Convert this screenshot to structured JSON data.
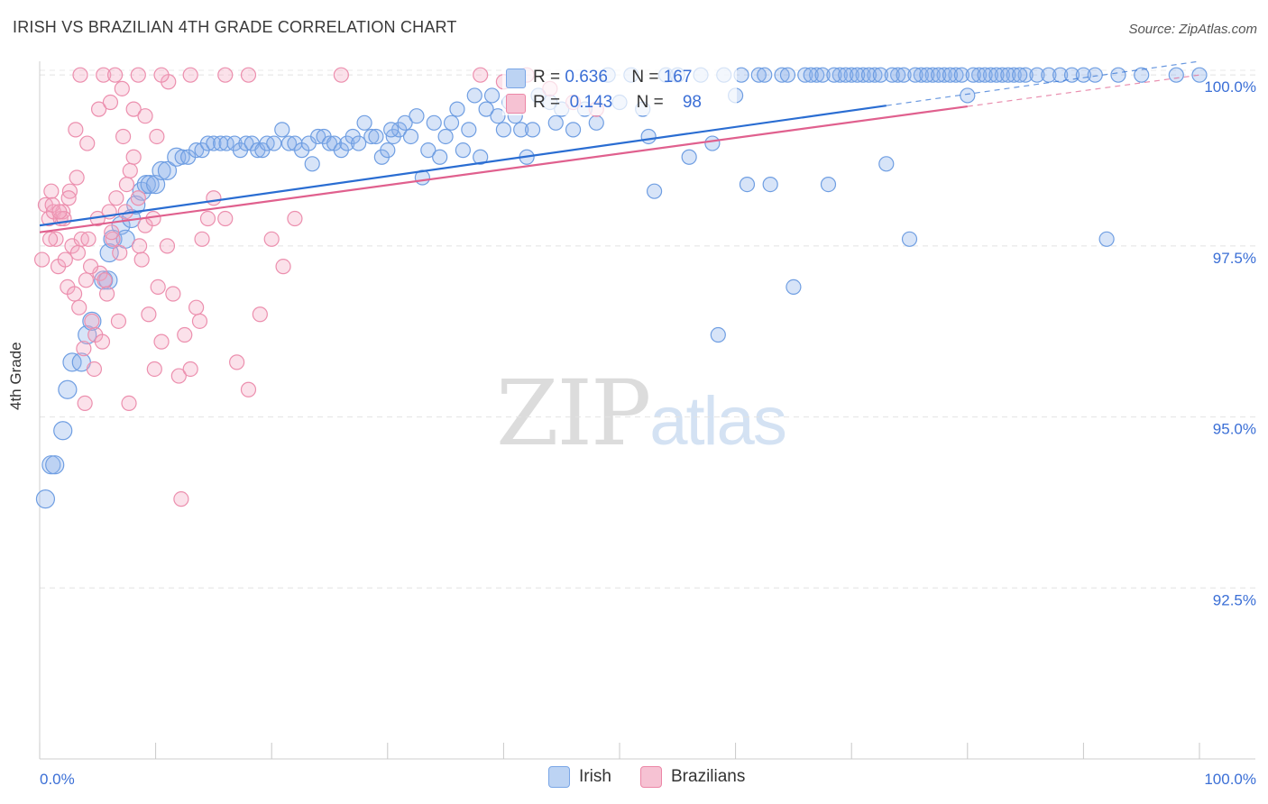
{
  "title": "IRISH VS BRAZILIAN 4TH GRADE CORRELATION CHART",
  "source": "Source: ZipAtlas.com",
  "watermark": {
    "zip": "ZIP",
    "atlas": "atlas"
  },
  "colors": {
    "irish": "#5b8fdc",
    "irish_line": "#2a6dd2",
    "brazilians": "#ec86a6",
    "brazilians_line": "#e0608e",
    "tick_text": "#3b6fd6",
    "grid": "#dddddd"
  },
  "stats": [
    {
      "r_label": "R =",
      "r_value": "0.636",
      "n_label": "N =",
      "n_value": "167"
    },
    {
      "r_label": "R =",
      "r_value": "0.143",
      "n_label": "N =",
      "n_value": "98"
    }
  ],
  "legend": {
    "irish": "Irish",
    "brazilians": "Brazilians"
  },
  "chart_data": {
    "type": "scatter",
    "title": "IRISH VS BRAZILIAN 4TH GRADE CORRELATION CHART",
    "xlabel": "",
    "ylabel": "4th Grade",
    "xlim": [
      0,
      100
    ],
    "ylim": [
      90.0,
      100.2
    ],
    "x_tick_labels": [
      {
        "value": 0,
        "label": "0.0%"
      },
      {
        "value": 100,
        "label": "100.0%"
      }
    ],
    "y_ticks": [
      {
        "value": 100.0,
        "label": "100.0%"
      },
      {
        "value": 97.5,
        "label": "97.5%"
      },
      {
        "value": 95.0,
        "label": "95.0%"
      },
      {
        "value": 92.5,
        "label": "92.5%"
      }
    ],
    "series": [
      {
        "name": "Irish",
        "R": 0.636,
        "N": 167,
        "trend": {
          "x0": 0,
          "y0": 97.8,
          "x1": 100,
          "y1": 100.2,
          "solid_until": 73
        },
        "points": [
          [
            0.5,
            93.8
          ],
          [
            1,
            94.3
          ],
          [
            1.3,
            94.3
          ],
          [
            2,
            94.8
          ],
          [
            2.4,
            95.4
          ],
          [
            2.8,
            95.8
          ],
          [
            3.6,
            95.8
          ],
          [
            4.1,
            96.2
          ],
          [
            4.5,
            96.4
          ],
          [
            5.5,
            97.0
          ],
          [
            5.9,
            97.0
          ],
          [
            6,
            97.4
          ],
          [
            6.3,
            97.6
          ],
          [
            7.0,
            97.8
          ],
          [
            7.4,
            97.6
          ],
          [
            7.9,
            97.9
          ],
          [
            8.3,
            98.1
          ],
          [
            8.8,
            98.3
          ],
          [
            9.2,
            98.4
          ],
          [
            9.5,
            98.4
          ],
          [
            10,
            98.4
          ],
          [
            10.5,
            98.6
          ],
          [
            11,
            98.6
          ],
          [
            11.8,
            98.8
          ],
          [
            12.3,
            98.8
          ],
          [
            12.8,
            98.8
          ],
          [
            13.5,
            98.9
          ],
          [
            14,
            98.9
          ],
          [
            14.5,
            99.0
          ],
          [
            15,
            99.0
          ],
          [
            15.6,
            99.0
          ],
          [
            16.1,
            99.0
          ],
          [
            16.8,
            99.0
          ],
          [
            17.3,
            98.9
          ],
          [
            17.8,
            99.0
          ],
          [
            18.3,
            99.0
          ],
          [
            18.8,
            98.9
          ],
          [
            19.2,
            98.9
          ],
          [
            19.6,
            99.0
          ],
          [
            20.2,
            99.0
          ],
          [
            20.9,
            99.2
          ],
          [
            21.5,
            99.0
          ],
          [
            22,
            99.0
          ],
          [
            22.6,
            98.9
          ],
          [
            23.2,
            99.0
          ],
          [
            23.5,
            98.7
          ],
          [
            24,
            99.1
          ],
          [
            24.5,
            99.1
          ],
          [
            25,
            99.0
          ],
          [
            25.4,
            99.0
          ],
          [
            26,
            98.9
          ],
          [
            26.5,
            99.0
          ],
          [
            27,
            99.1
          ],
          [
            27.5,
            99.0
          ],
          [
            28,
            99.3
          ],
          [
            28.6,
            99.1
          ],
          [
            29,
            99.1
          ],
          [
            29.5,
            98.8
          ],
          [
            30,
            98.9
          ],
          [
            30.5,
            99.1
          ],
          [
            31,
            99.2
          ],
          [
            31.5,
            99.3
          ],
          [
            32,
            99.1
          ],
          [
            32.5,
            99.4
          ],
          [
            33,
            98.5
          ],
          [
            33.5,
            98.9
          ],
          [
            34,
            99.3
          ],
          [
            34.5,
            98.8
          ],
          [
            35,
            99.1
          ],
          [
            35.5,
            99.3
          ],
          [
            36,
            99.5
          ],
          [
            36.5,
            98.9
          ],
          [
            37,
            99.2
          ],
          [
            37.5,
            99.7
          ],
          [
            38,
            98.8
          ],
          [
            38.5,
            99.5
          ],
          [
            39,
            99.7
          ],
          [
            39.5,
            99.4
          ],
          [
            40,
            99.2
          ],
          [
            40.5,
            99.6
          ],
          [
            41,
            99.4
          ],
          [
            41.5,
            99.2
          ],
          [
            42,
            98.8
          ],
          [
            42.5,
            99.2
          ],
          [
            43,
            99.7
          ],
          [
            44,
            99.6
          ],
          [
            45,
            99.5
          ],
          [
            46,
            99.2
          ],
          [
            47,
            99.5
          ],
          [
            48,
            99.3
          ],
          [
            49,
            100
          ],
          [
            50,
            99.6
          ],
          [
            51,
            100
          ],
          [
            52,
            99.5
          ],
          [
            53,
            98.3
          ],
          [
            54,
            100
          ],
          [
            55,
            100
          ],
          [
            56,
            98.8
          ],
          [
            57,
            100
          ],
          [
            58,
            99.0
          ],
          [
            59,
            100
          ],
          [
            60,
            99.7
          ],
          [
            61,
            98.4
          ],
          [
            62,
            100
          ],
          [
            63,
            98.4
          ],
          [
            64,
            100
          ],
          [
            65,
            96.9
          ],
          [
            66,
            100
          ],
          [
            67,
            100
          ],
          [
            68,
            98.4
          ],
          [
            69,
            100
          ],
          [
            70,
            100
          ],
          [
            71,
            100
          ],
          [
            72,
            100
          ],
          [
            73,
            98.7
          ],
          [
            74,
            100
          ],
          [
            75,
            97.6
          ],
          [
            76,
            100
          ],
          [
            77,
            100
          ],
          [
            78,
            100
          ],
          [
            79,
            100
          ],
          [
            80,
            99.7
          ],
          [
            81,
            100
          ],
          [
            82,
            100
          ],
          [
            83,
            100
          ],
          [
            84,
            100
          ],
          [
            85,
            100
          ],
          [
            86,
            100
          ],
          [
            87,
            100
          ],
          [
            88,
            100
          ],
          [
            89,
            100
          ],
          [
            90,
            100
          ],
          [
            91,
            100
          ],
          [
            92,
            97.6
          ],
          [
            93,
            100
          ],
          [
            95,
            100
          ],
          [
            98,
            100
          ],
          [
            100,
            100
          ],
          [
            58.5,
            96.2
          ],
          [
            30.3,
            99.2
          ],
          [
            44.5,
            99.3
          ],
          [
            52.5,
            99.1
          ],
          [
            60.5,
            100
          ],
          [
            62.5,
            100
          ],
          [
            64.5,
            100
          ],
          [
            66.5,
            100
          ],
          [
            67.5,
            100
          ],
          [
            68.5,
            100
          ],
          [
            69.5,
            100
          ],
          [
            70.5,
            100
          ],
          [
            71.5,
            100
          ],
          [
            72.5,
            100
          ],
          [
            73.5,
            100
          ],
          [
            74.5,
            100
          ],
          [
            75.5,
            100
          ],
          [
            76.5,
            100
          ],
          [
            77.5,
            100
          ],
          [
            78.5,
            100
          ],
          [
            79.5,
            100
          ],
          [
            80.5,
            100
          ],
          [
            81.5,
            100
          ],
          [
            82.5,
            100
          ],
          [
            83.5,
            100
          ],
          [
            84.5,
            100
          ]
        ]
      },
      {
        "name": "Brazilians",
        "R": 0.143,
        "N": 98,
        "trend": {
          "x0": 0,
          "y0": 97.7,
          "x1": 100,
          "y1": 100.0,
          "solid_until": 80
        },
        "points": [
          [
            0.2,
            97.3
          ],
          [
            0.5,
            98.1
          ],
          [
            0.8,
            97.9
          ],
          [
            1.0,
            98.3
          ],
          [
            1.2,
            98.0
          ],
          [
            1.4,
            97.6
          ],
          [
            1.6,
            97.2
          ],
          [
            1.8,
            97.9
          ],
          [
            2.0,
            98.0
          ],
          [
            2.2,
            97.3
          ],
          [
            2.4,
            96.9
          ],
          [
            2.6,
            98.3
          ],
          [
            2.8,
            97.5
          ],
          [
            3.0,
            96.8
          ],
          [
            3.2,
            98.5
          ],
          [
            3.4,
            96.6
          ],
          [
            3.6,
            97.6
          ],
          [
            3.8,
            96.0
          ],
          [
            4.0,
            97.0
          ],
          [
            4.2,
            97.6
          ],
          [
            4.5,
            96.4
          ],
          [
            4.8,
            96.2
          ],
          [
            5.0,
            97.9
          ],
          [
            5.2,
            97.1
          ],
          [
            5.4,
            96.1
          ],
          [
            5.6,
            97.0
          ],
          [
            6.0,
            98.0
          ],
          [
            6.3,
            97.6
          ],
          [
            6.6,
            98.2
          ],
          [
            6.9,
            97.4
          ],
          [
            7.2,
            99.1
          ],
          [
            7.5,
            98.4
          ],
          [
            7.8,
            98.6
          ],
          [
            8.1,
            98.8
          ],
          [
            8.5,
            98.2
          ],
          [
            8.8,
            97.3
          ],
          [
            9.1,
            97.8
          ],
          [
            9.4,
            96.5
          ],
          [
            9.8,
            97.9
          ],
          [
            10.2,
            96.9
          ],
          [
            10.5,
            96.1
          ],
          [
            11,
            97.5
          ],
          [
            11.5,
            96.8
          ],
          [
            12,
            95.6
          ],
          [
            12.5,
            96.2
          ],
          [
            13,
            95.7
          ],
          [
            13.5,
            96.6
          ],
          [
            14,
            97.6
          ],
          [
            14.5,
            97.9
          ],
          [
            15,
            98.2
          ],
          [
            16,
            97.9
          ],
          [
            17,
            95.8
          ],
          [
            18,
            95.4
          ],
          [
            19,
            96.5
          ],
          [
            20,
            97.6
          ],
          [
            21,
            97.2
          ],
          [
            22,
            97.9
          ],
          [
            1.1,
            98.1
          ],
          [
            2.1,
            97.9
          ],
          [
            3.1,
            99.2
          ],
          [
            4.1,
            99.0
          ],
          [
            5.1,
            99.5
          ],
          [
            6.1,
            99.6
          ],
          [
            7.1,
            99.8
          ],
          [
            8.1,
            99.5
          ],
          [
            9.1,
            99.4
          ],
          [
            10.1,
            99.1
          ],
          [
            11.1,
            99.9
          ],
          [
            3.5,
            100
          ],
          [
            5.5,
            100
          ],
          [
            6.5,
            100
          ],
          [
            8.5,
            100
          ],
          [
            10.5,
            100
          ],
          [
            13,
            100
          ],
          [
            16,
            100
          ],
          [
            18,
            100
          ],
          [
            26,
            100
          ],
          [
            38,
            100
          ],
          [
            40,
            99.9
          ],
          [
            42,
            100
          ],
          [
            44,
            99.8
          ],
          [
            46,
            99.6
          ],
          [
            48,
            99.5
          ],
          [
            6.8,
            96.4
          ],
          [
            3.9,
            95.2
          ],
          [
            4.7,
            95.7
          ],
          [
            5.8,
            96.8
          ],
          [
            7.7,
            95.2
          ],
          [
            9.9,
            95.7
          ],
          [
            12.2,
            93.8
          ],
          [
            13.8,
            96.4
          ],
          [
            2.5,
            98.2
          ],
          [
            1.7,
            98.0
          ],
          [
            0.9,
            97.6
          ],
          [
            3.3,
            97.4
          ],
          [
            4.4,
            97.2
          ],
          [
            6.2,
            97.7
          ],
          [
            7.4,
            98.0
          ],
          [
            8.6,
            97.5
          ]
        ]
      }
    ]
  }
}
